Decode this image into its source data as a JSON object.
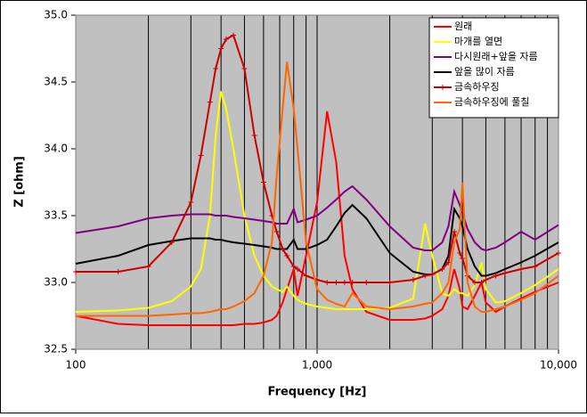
{
  "chart_data": {
    "type": "line",
    "xlabel": "Frequency [Hz]",
    "ylabel": "Z [ohm]",
    "x": [
      100,
      150,
      200,
      250,
      300,
      330,
      360,
      380,
      400,
      420,
      450,
      500,
      550,
      600,
      650,
      680,
      720,
      750,
      800,
      830,
      900,
      1000,
      1100,
      1200,
      1300,
      1400,
      1600,
      2000,
      2500,
      2800,
      3000,
      3300,
      3500,
      3700,
      3900,
      4000,
      4200,
      4500,
      4800,
      5000,
      5500,
      6000,
      7000,
      8000,
      10000
    ],
    "xlim": [
      100,
      10000
    ],
    "xscale": "log",
    "xticks": [
      100,
      {
        "value": 1000,
        "label": "1,000"
      },
      {
        "value": 10000,
        "label": "10,000"
      }
    ],
    "ylim": [
      32.5,
      35.0
    ],
    "yticks": [
      {
        "value": 32.5,
        "label": "32.5"
      },
      {
        "value": 33.0,
        "label": "33.0"
      },
      {
        "value": 33.5,
        "label": "33.5"
      },
      {
        "value": 34.0,
        "label": "34.0"
      },
      {
        "value": 34.5,
        "label": "34.5"
      },
      {
        "value": 35.0,
        "label": "35.0"
      }
    ],
    "grid": "x",
    "legend": "upper right",
    "series": [
      {
        "name": "원래",
        "color": "#ff0000",
        "values": [
          32.75,
          32.69,
          32.68,
          32.68,
          32.68,
          32.68,
          32.68,
          32.68,
          32.68,
          32.68,
          32.68,
          32.69,
          32.69,
          32.7,
          32.72,
          32.75,
          32.85,
          32.95,
          33.1,
          32.9,
          33.2,
          33.6,
          34.28,
          33.9,
          33.2,
          32.95,
          32.78,
          32.72,
          32.72,
          32.73,
          32.75,
          32.8,
          32.9,
          33.1,
          32.95,
          32.82,
          32.8,
          32.9,
          33.0,
          32.85,
          32.78,
          32.82,
          32.88,
          32.93,
          33.0
        ]
      },
      {
        "name": "마개를 열면",
        "color": "#ffff00",
        "values": [
          32.78,
          32.79,
          32.81,
          32.86,
          32.97,
          33.1,
          33.5,
          34.1,
          34.43,
          34.3,
          34.0,
          33.5,
          33.2,
          33.05,
          32.97,
          32.95,
          32.93,
          32.97,
          32.9,
          32.87,
          32.84,
          32.82,
          32.81,
          32.8,
          32.8,
          32.8,
          32.8,
          32.81,
          32.88,
          33.44,
          33.2,
          32.92,
          32.9,
          32.95,
          32.92,
          32.92,
          32.9,
          32.98,
          33.15,
          32.95,
          32.85,
          32.86,
          32.92,
          32.98,
          33.1
        ]
      },
      {
        "name": "다시원래+앞을 자름",
        "color": "#800080",
        "values": [
          33.37,
          33.42,
          33.48,
          33.5,
          33.51,
          33.51,
          33.51,
          33.5,
          33.5,
          33.5,
          33.49,
          33.48,
          33.47,
          33.46,
          33.45,
          33.44,
          33.44,
          33.44,
          33.55,
          33.45,
          33.47,
          33.5,
          33.56,
          33.62,
          33.68,
          33.72,
          33.62,
          33.42,
          33.26,
          33.24,
          33.24,
          33.3,
          33.42,
          33.68,
          33.58,
          33.52,
          33.4,
          33.3,
          33.25,
          33.24,
          33.26,
          33.3,
          33.38,
          33.32,
          33.43
        ]
      },
      {
        "name": "앞을 많이 자름",
        "color": "#000000",
        "values": [
          33.14,
          33.2,
          33.28,
          33.31,
          33.33,
          33.33,
          33.33,
          33.32,
          33.32,
          33.31,
          33.3,
          33.29,
          33.28,
          33.27,
          33.26,
          33.25,
          33.25,
          33.25,
          33.32,
          33.25,
          33.25,
          33.28,
          33.32,
          33.42,
          33.52,
          33.58,
          33.48,
          33.22,
          33.08,
          33.06,
          33.06,
          33.1,
          33.2,
          33.55,
          33.48,
          33.42,
          33.25,
          33.12,
          33.05,
          33.05,
          33.07,
          33.1,
          33.15,
          33.2,
          33.3
        ]
      },
      {
        "name": "금속하우징",
        "color": "#cc0000",
        "marker": "+",
        "values": [
          33.08,
          33.08,
          33.12,
          33.3,
          33.6,
          33.95,
          34.35,
          34.6,
          34.75,
          34.82,
          34.85,
          34.6,
          34.1,
          33.75,
          33.5,
          33.38,
          33.25,
          33.2,
          33.12,
          33.1,
          33.05,
          33.02,
          33.0,
          33.0,
          33.0,
          33.0,
          33.0,
          33.0,
          33.02,
          33.05,
          33.06,
          33.1,
          33.15,
          33.38,
          33.22,
          33.18,
          33.05,
          33.0,
          33.0,
          33.02,
          33.05,
          33.07,
          33.1,
          33.12,
          33.22
        ]
      },
      {
        "name": "금속하우징에 풀칠",
        "color": "#ff6600",
        "values": [
          32.75,
          32.75,
          32.75,
          32.76,
          32.77,
          32.77,
          32.78,
          32.79,
          32.8,
          32.8,
          32.82,
          32.86,
          32.92,
          33.05,
          33.3,
          33.8,
          34.3,
          34.65,
          34.3,
          34.0,
          33.3,
          32.95,
          32.87,
          32.84,
          32.82,
          32.92,
          32.82,
          32.8,
          32.82,
          32.84,
          32.85,
          32.92,
          33.0,
          33.3,
          33.4,
          33.75,
          33.0,
          32.82,
          32.78,
          32.78,
          32.8,
          32.82,
          32.87,
          32.92,
          33.05
        ]
      }
    ]
  }
}
